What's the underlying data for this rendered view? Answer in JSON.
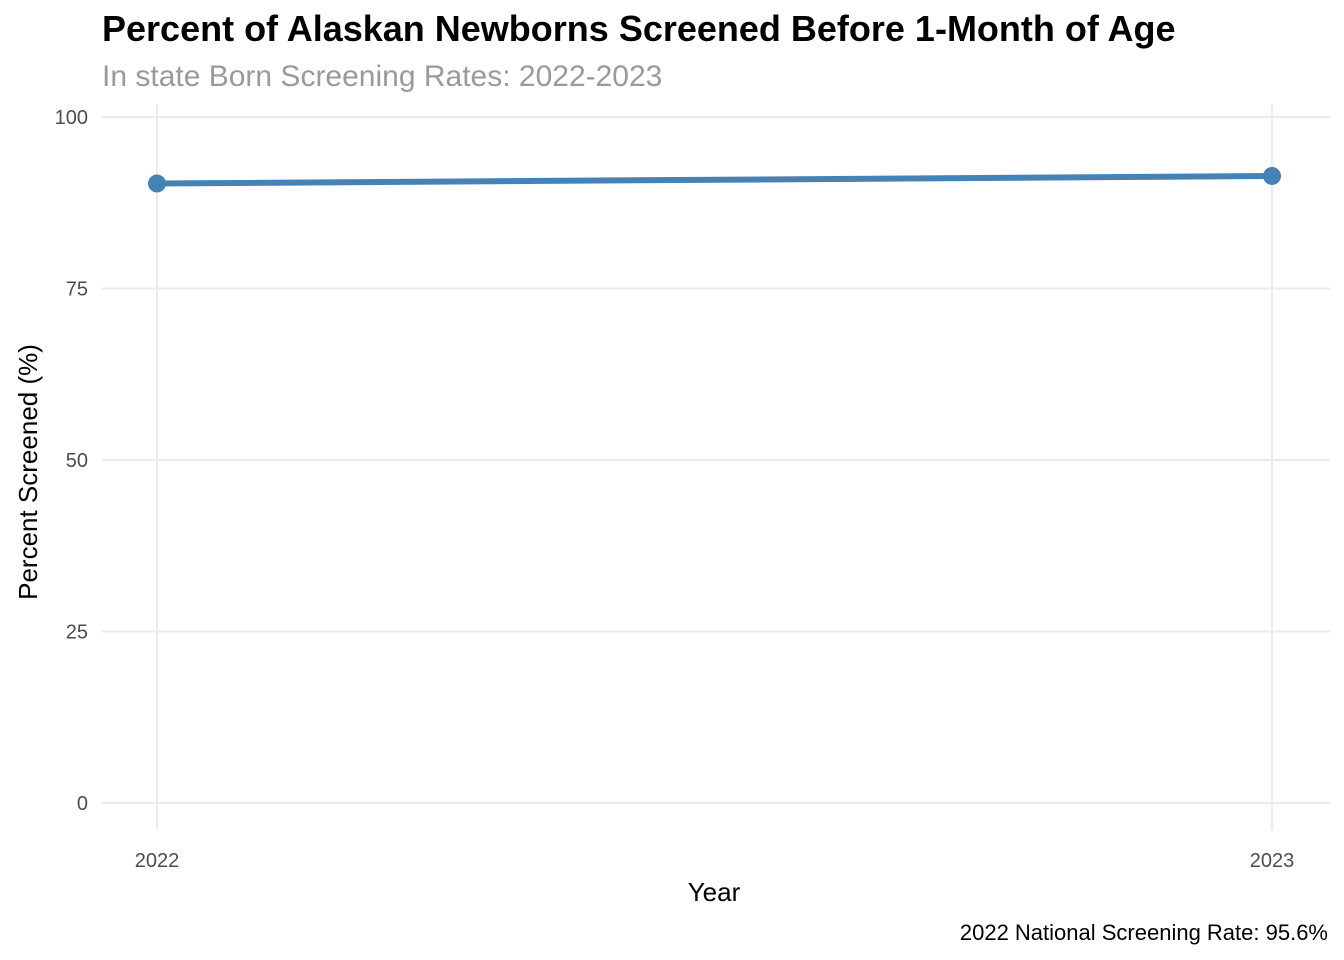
{
  "chart_data": {
    "type": "line",
    "title": "Percent of Alaskan Newborns Screened Before 1-Month of Age",
    "subtitle": "In state Born Screening Rates: 2022-2023",
    "caption": "2022 National Screening Rate: 95.6%",
    "xlabel": "Year",
    "ylabel": "Percent Screened (%)",
    "categories": [
      "2022",
      "2023"
    ],
    "series": [
      {
        "values": [
          90.3,
          91.4
        ],
        "color": "#4682b4"
      }
    ],
    "yticks": [
      0,
      25,
      50,
      75,
      100
    ],
    "ylim": [
      0,
      100
    ],
    "grid": true,
    "legend": "none"
  }
}
